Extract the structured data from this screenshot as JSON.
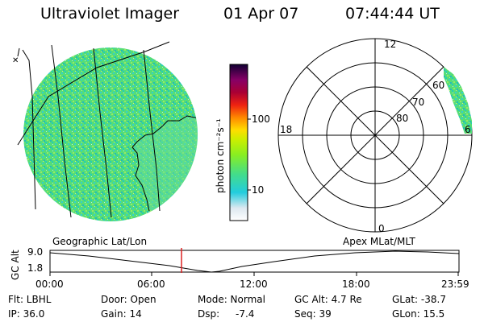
{
  "header": {
    "instrument": "Ultraviolet Imager",
    "date": "01 Apr 07",
    "time": "07:44:44 UT"
  },
  "colorbar": {
    "label": "photon cm⁻²s⁻¹",
    "ticks": [
      "100",
      "10"
    ]
  },
  "polar_plot": {
    "mlt_labels": [
      "12",
      "18",
      "6",
      "0"
    ],
    "lat_labels": [
      "60",
      "70",
      "80"
    ]
  },
  "panel_labels": {
    "geographic": "Geographic Lat/Lon",
    "apex": "Apex MLat/MLT"
  },
  "altitude_plot": {
    "axis_label": "GC Alt",
    "y_ticks": [
      "9.0",
      "1.8"
    ],
    "x_ticks": [
      "00:00",
      "06:00",
      "12:00",
      "18:00",
      "23:59"
    ]
  },
  "info": {
    "flt": "Flt: LBHL",
    "door": "Door: Open",
    "mode": "Mode: Normal",
    "gc_alt": "GC Alt: 4.7 Re",
    "glat": "GLat: -38.7",
    "ip": "IP: 36.0",
    "gain": "Gain: 14",
    "dsp_label": "Dsp:",
    "dsp_value": "-7.4",
    "seq": "Seq: 39",
    "glon": "GLon: 15.5"
  },
  "colors": {
    "aurora_green": "#44dd66",
    "aurora_cyan": "#22ccbb",
    "marker_red": "#dd2222"
  }
}
